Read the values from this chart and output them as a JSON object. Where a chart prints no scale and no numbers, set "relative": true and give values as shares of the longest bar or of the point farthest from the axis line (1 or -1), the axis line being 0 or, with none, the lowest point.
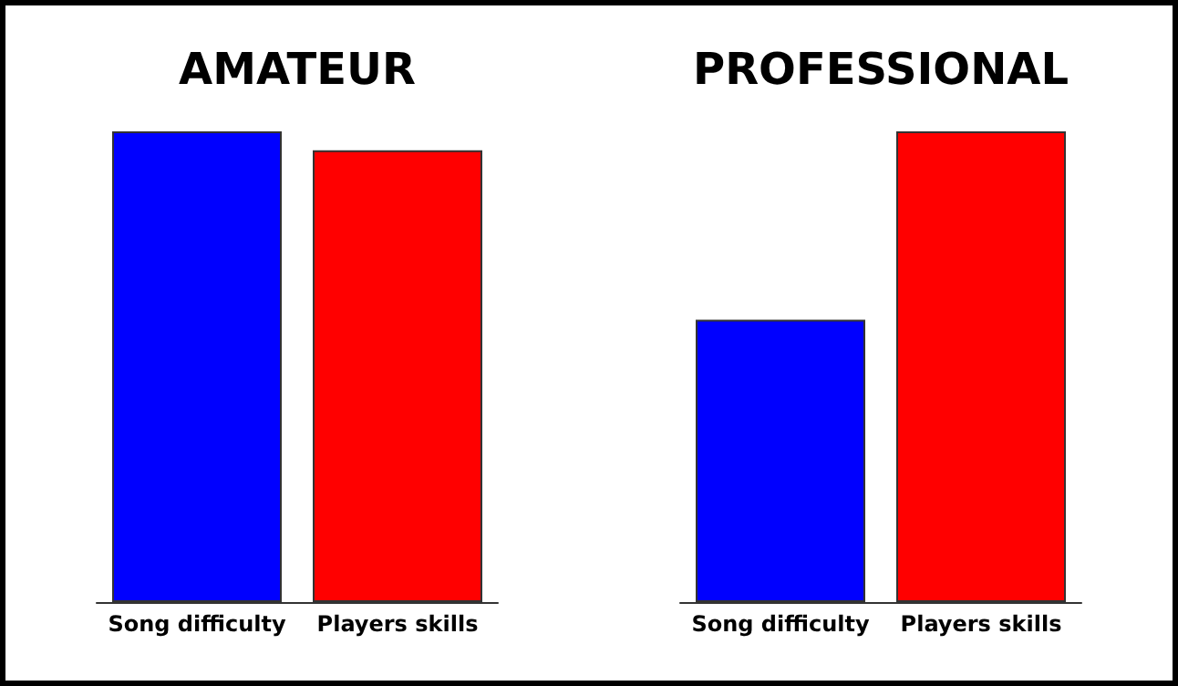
{
  "chart_data": [
    {
      "type": "bar",
      "title": "AMATEUR",
      "categories": [
        "Song difficulty",
        "Players skills"
      ],
      "relative": true,
      "values": [
        1,
        0.96
      ],
      "colors": [
        "#0000ff",
        "#ff0000"
      ]
    },
    {
      "type": "bar",
      "title": "PROFESSIONAL",
      "categories": [
        "Song difficulty",
        "Players skills"
      ],
      "relative": true,
      "values": [
        0.6,
        1
      ],
      "colors": [
        "#0000ff",
        "#ff0000"
      ]
    }
  ]
}
